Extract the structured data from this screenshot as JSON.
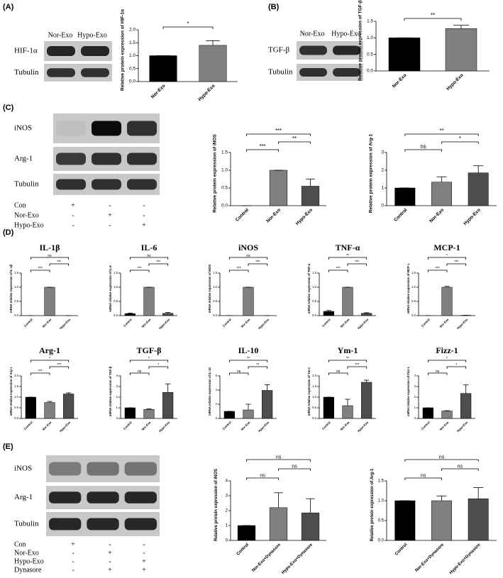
{
  "panels": [
    "(A)",
    "(B)",
    "(C)",
    "(D)",
    "(E)"
  ],
  "blots": {
    "A": {
      "lanes": [
        "Nor-Exo",
        "Hypo-Exo"
      ],
      "rows": [
        "HIF-1α",
        "Tubulin"
      ]
    },
    "B": {
      "lanes": [
        "Nor-Exo",
        "Hypo-Exo"
      ],
      "rows": [
        "TGF-β",
        "Tubulin"
      ]
    },
    "C": {
      "rows": [
        "iNOS",
        "Arg-1",
        "Tubulin"
      ],
      "conditions": [
        {
          "name": "Con",
          "signs": [
            "+",
            "-",
            "-"
          ]
        },
        {
          "name": "Nor-Exo",
          "signs": [
            "-",
            "+",
            "-"
          ]
        },
        {
          "name": "Hypo-Exo",
          "signs": [
            "-",
            "-",
            "+"
          ]
        }
      ]
    },
    "E": {
      "rows": [
        "iNOS",
        "Arg-1",
        "Tubulin"
      ],
      "conditions": [
        {
          "name": "Con",
          "signs": [
            "+",
            "-",
            "-"
          ]
        },
        {
          "name": "Nor-Exo",
          "signs": [
            "-",
            "+",
            "-"
          ]
        },
        {
          "name": "Hypo-Exo",
          "signs": [
            "-",
            "-",
            "+"
          ]
        },
        {
          "name": "Dynasore",
          "signs": [
            "-",
            "+",
            "+"
          ]
        }
      ]
    }
  },
  "chart_data": [
    {
      "type": "bar",
      "ylabel": "Relative protein expression of HIF-1α",
      "categories": [
        "Nor-Exo",
        "Hypo-Exo"
      ],
      "values": [
        1.0,
        1.4
      ],
      "errors": [
        0,
        0.18
      ],
      "colors": [
        "#000000",
        "#808080"
      ],
      "ylim": [
        0,
        2
      ],
      "yticks": [
        {
          "value": 0,
          "label": "0.0"
        },
        0.5,
        {
          "value": 1,
          "label": "1.0"
        },
        1.5,
        {
          "value": 2,
          "label": "2.0"
        }
      ],
      "annotations": [
        {
          "between": [
            "Nor-Exo",
            "Hypo-Exo"
          ],
          "label": "*"
        }
      ]
    },
    {
      "type": "bar",
      "ylabel": "Relative protein expression of TGF-β",
      "categories": [
        "Nor-Exo",
        "Hypo-Exo"
      ],
      "values": [
        1.0,
        1.28
      ],
      "errors": [
        0,
        0.1
      ],
      "colors": [
        "#000000",
        "#808080"
      ],
      "ylim": [
        0,
        1.5
      ],
      "yticks": [
        {
          "value": 0,
          "label": "0.0"
        },
        0.5,
        {
          "value": 1,
          "label": "1.0"
        },
        1.5
      ],
      "annotations": [
        {
          "between": [
            "Nor-Exo",
            "Hypo-Exo"
          ],
          "label": "**"
        }
      ]
    },
    {
      "type": "bar",
      "ylabel": "Relative protein expression of iNOS",
      "categories": [
        "Control",
        "Nor-Exo",
        "Hypo-Exo"
      ],
      "values": [
        0,
        1.0,
        0.55
      ],
      "errors": [
        0,
        0,
        0.2
      ],
      "colors": [
        "#000000",
        "#808080",
        "#4d4d4d"
      ],
      "ylim": [
        0,
        1.5
      ],
      "yticks": [
        {
          "value": 0,
          "label": "0.0"
        },
        0.5,
        {
          "value": 1,
          "label": "1.0"
        },
        1.5
      ],
      "annotations": [
        {
          "between": [
            "Control",
            "Nor-Exo"
          ],
          "label": "***"
        },
        {
          "between": [
            "Nor-Exo",
            "Hypo-Exo"
          ],
          "label": "**"
        },
        {
          "between": [
            "Control",
            "Hypo-Exo"
          ],
          "label": "***"
        }
      ]
    },
    {
      "type": "bar",
      "ylabel": "Relative protein expression of Arg-1",
      "categories": [
        "Control",
        "Nor-Exo",
        "Hypo-Exo"
      ],
      "values": [
        1.0,
        1.33,
        1.85
      ],
      "errors": [
        0,
        0.3,
        0.4
      ],
      "colors": [
        "#000000",
        "#808080",
        "#4d4d4d"
      ],
      "ylim": [
        0,
        3
      ],
      "yticks": [
        0,
        1,
        2,
        3
      ],
      "annotations": [
        {
          "between": [
            "Control",
            "Nor-Exo"
          ],
          "label": "ns"
        },
        {
          "between": [
            "Nor-Exo",
            "Hypo-Exo"
          ],
          "label": "*"
        },
        {
          "between": [
            "Control",
            "Hypo-Exo"
          ],
          "label": "**"
        }
      ]
    },
    {
      "type": "bar",
      "title": "IL-1β",
      "ylabel": "mRNA relative expression of IL-1β",
      "categories": [
        "Control",
        "Nor-Exo",
        "Hypo-Exo"
      ],
      "values": [
        0,
        1.0,
        0
      ],
      "errors": [
        0,
        0,
        0
      ],
      "colors": [
        "#000000",
        "#808080",
        "#4d4d4d"
      ],
      "ylim": [
        0,
        1.5
      ],
      "yticks": [
        {
          "value": 0,
          "label": "0.0"
        },
        0.5,
        {
          "value": 1,
          "label": "1.0"
        },
        1.5
      ],
      "annotations": [
        {
          "between": [
            "Control",
            "Nor-Exo"
          ],
          "label": "***"
        },
        {
          "between": [
            "Nor-Exo",
            "Hypo-Exo"
          ],
          "label": "***"
        },
        {
          "between": [
            "Control",
            "Hypo-Exo"
          ],
          "label": "ns"
        }
      ]
    },
    {
      "type": "bar",
      "title": "IL-6",
      "ylabel": "mRNA relative expression of IL-6",
      "categories": [
        "Control",
        "Nor-Exo",
        "Hypo-Exo"
      ],
      "values": [
        0.07,
        1.0,
        0.08
      ],
      "errors": [
        0.02,
        0,
        0.03
      ],
      "colors": [
        "#000000",
        "#808080",
        "#4d4d4d"
      ],
      "ylim": [
        0,
        1.5
      ],
      "yticks": [
        {
          "value": 0,
          "label": "0.0"
        },
        0.5,
        {
          "value": 1,
          "label": "1.0"
        },
        1.5
      ],
      "annotations": [
        {
          "between": [
            "Control",
            "Nor-Exo"
          ],
          "label": "***"
        },
        {
          "between": [
            "Nor-Exo",
            "Hypo-Exo"
          ],
          "label": "***"
        },
        {
          "between": [
            "Control",
            "Hypo-Exo"
          ],
          "label": "ns"
        }
      ]
    },
    {
      "type": "bar",
      "title": "iNOS",
      "ylabel": "mRNA relative expression of iNOS",
      "categories": [
        "Control",
        "Nor-Exo",
        "Hypo-Exo"
      ],
      "values": [
        0,
        1.0,
        0
      ],
      "errors": [
        0,
        0,
        0
      ],
      "colors": [
        "#000000",
        "#808080",
        "#4d4d4d"
      ],
      "ylim": [
        0,
        1.5
      ],
      "yticks": [
        {
          "value": 0,
          "label": "0.0"
        },
        0.5,
        {
          "value": 1,
          "label": "1.0"
        },
        1.5
      ],
      "annotations": [
        {
          "between": [
            "Control",
            "Nor-Exo"
          ],
          "label": "***"
        },
        {
          "between": [
            "Nor-Exo",
            "Hypo-Exo"
          ],
          "label": "***"
        },
        {
          "between": [
            "Control",
            "Hypo-Exo"
          ],
          "label": "ns"
        }
      ]
    },
    {
      "type": "bar",
      "title": "TNF-α",
      "ylabel": "mRNA relative expression of TNF-α",
      "categories": [
        "Control",
        "Nor-Exo",
        "Hypo-Exo"
      ],
      "values": [
        0.15,
        1.0,
        0.08
      ],
      "errors": [
        0.03,
        0,
        0.02
      ],
      "colors": [
        "#000000",
        "#808080",
        "#4d4d4d"
      ],
      "ylim": [
        0,
        1.5
      ],
      "yticks": [
        {
          "value": 0,
          "label": "0.0"
        },
        0.5,
        {
          "value": 1,
          "label": "1.0"
        },
        1.5
      ],
      "annotations": [
        {
          "between": [
            "Control",
            "Nor-Exo"
          ],
          "label": "***"
        },
        {
          "between": [
            "Nor-Exo",
            "Hypo-Exo"
          ],
          "label": "***"
        },
        {
          "between": [
            "Control",
            "Hypo-Exo"
          ],
          "label": "**"
        }
      ]
    },
    {
      "type": "bar",
      "title": "MCP-1",
      "ylabel": "mRNA relative expression of MCP-1",
      "categories": [
        "Control",
        "Nor-Exo",
        "Hypo-Exo"
      ],
      "values": [
        0,
        1.0,
        0.01
      ],
      "errors": [
        0,
        0.03,
        0
      ],
      "colors": [
        "#000000",
        "#808080",
        "#4d4d4d"
      ],
      "ylim": [
        0,
        1.5
      ],
      "yticks": [
        {
          "value": 0,
          "label": "0.0"
        },
        0.5,
        {
          "value": 1,
          "label": "1.0"
        },
        1.5
      ],
      "annotations": [
        {
          "between": [
            "Control",
            "Nor-Exo"
          ],
          "label": "***"
        },
        {
          "between": [
            "Nor-Exo",
            "Hypo-Exo"
          ],
          "label": "***"
        },
        {
          "between": [
            "Control",
            "Hypo-Exo"
          ],
          "label": "*"
        }
      ]
    },
    {
      "type": "bar",
      "title": "Arg-1",
      "ylabel": "mRNA relative expression of Arg-1",
      "categories": [
        "Control",
        "Nor-Exo",
        "Hypo-Exo"
      ],
      "values": [
        1.0,
        0.75,
        1.15
      ],
      "errors": [
        0,
        0.05,
        0.05
      ],
      "colors": [
        "#000000",
        "#808080",
        "#4d4d4d"
      ],
      "ylim": [
        0,
        2
      ],
      "yticks": [
        {
          "value": 0,
          "label": "0.0"
        },
        0.5,
        {
          "value": 1,
          "label": "1.0"
        },
        1.5,
        {
          "value": 2,
          "label": "2.0"
        }
      ],
      "annotations": [
        {
          "between": [
            "Control",
            "Nor-Exo"
          ],
          "label": "***"
        },
        {
          "between": [
            "Nor-Exo",
            "Hypo-Exo"
          ],
          "label": "***"
        },
        {
          "between": [
            "Control",
            "Hypo-Exo"
          ],
          "label": "*"
        }
      ]
    },
    {
      "type": "bar",
      "title": "TGF-β",
      "ylabel": "mRNA relative expression of TGF-β",
      "categories": [
        "Control",
        "Nor-Exo",
        "Hypo-Exo"
      ],
      "values": [
        1.0,
        0.85,
        2.45
      ],
      "errors": [
        0,
        0.05,
        0.8
      ],
      "colors": [
        "#000000",
        "#808080",
        "#4d4d4d"
      ],
      "ylim": [
        0,
        4
      ],
      "yticks": [
        0,
        1,
        2,
        3,
        4
      ],
      "annotations": [
        {
          "between": [
            "Control",
            "Nor-Exo"
          ],
          "label": "ns"
        },
        {
          "between": [
            "Nor-Exo",
            "Hypo-Exo"
          ],
          "label": "*"
        },
        {
          "between": [
            "Control",
            "Hypo-Exo"
          ],
          "label": "*"
        }
      ]
    },
    {
      "type": "bar",
      "title": "IL-10",
      "ylabel": "mRNA relative expression of IL-10",
      "categories": [
        "Control",
        "Nor-Exo",
        "Hypo-Exo"
      ],
      "values": [
        1.0,
        1.2,
        3.95
      ],
      "errors": [
        0,
        0.8,
        0.8
      ],
      "colors": [
        "#000000",
        "#808080",
        "#4d4d4d"
      ],
      "ylim": [
        0,
        6
      ],
      "yticks": [
        0,
        2,
        4,
        6
      ],
      "annotations": [
        {
          "between": [
            "Control",
            "Nor-Exo"
          ],
          "label": "ns"
        },
        {
          "between": [
            "Nor-Exo",
            "Hypo-Exo"
          ],
          "label": "**"
        },
        {
          "between": [
            "Control",
            "Hypo-Exo"
          ],
          "label": "**"
        }
      ]
    },
    {
      "type": "bar",
      "title": "Ym-1",
      "ylabel": "mRNA relative expression of Ym-1",
      "categories": [
        "Control",
        "Nor-Exo",
        "Hypo-Exo"
      ],
      "values": [
        1.0,
        0.6,
        1.7
      ],
      "errors": [
        0,
        0.3,
        0.1
      ],
      "colors": [
        "#000000",
        "#808080",
        "#4d4d4d"
      ],
      "ylim": [
        0,
        2
      ],
      "yticks": [
        {
          "value": 0,
          "label": "0.0"
        },
        0.5,
        {
          "value": 1,
          "label": "1.0"
        },
        1.5,
        {
          "value": 2,
          "label": "2.0"
        }
      ],
      "annotations": [
        {
          "between": [
            "Control",
            "Nor-Exo"
          ],
          "label": "ns"
        },
        {
          "between": [
            "Nor-Exo",
            "Hypo-Exo"
          ],
          "label": "***"
        },
        {
          "between": [
            "Control",
            "Hypo-Exo"
          ],
          "label": "**"
        }
      ]
    },
    {
      "type": "bar",
      "title": "Fizz-1",
      "ylabel": "mRNA relative expression of Fizz-1",
      "categories": [
        "Control",
        "Nor-Exo",
        "Hypo-Exo"
      ],
      "values": [
        1.0,
        0.7,
        2.35
      ],
      "errors": [
        0,
        0.03,
        0.8
      ],
      "colors": [
        "#000000",
        "#808080",
        "#4d4d4d"
      ],
      "ylim": [
        0,
        4
      ],
      "yticks": [
        0,
        1,
        2,
        3,
        4
      ],
      "annotations": [
        {
          "between": [
            "Control",
            "Nor-Exo"
          ],
          "label": "ns"
        },
        {
          "between": [
            "Nor-Exo",
            "Hypo-Exo"
          ],
          "label": "*"
        },
        {
          "between": [
            "Control",
            "Hypo-Exo"
          ],
          "label": "*"
        }
      ]
    },
    {
      "type": "bar",
      "ylabel": "Relative protein expression of iNOS",
      "categories": [
        "Control",
        "Nor-Exo+Dynasore",
        "Hypo-Exo+Dynasore"
      ],
      "values": [
        1.0,
        2.2,
        1.85
      ],
      "errors": [
        0,
        1.0,
        0.95
      ],
      "colors": [
        "#000000",
        "#808080",
        "#4d4d4d"
      ],
      "ylim": [
        0,
        4
      ],
      "yticks": [
        0,
        1,
        2,
        3,
        4
      ],
      "annotations": [
        {
          "between": [
            "Control",
            "Nor-Exo+Dynasore"
          ],
          "label": "ns"
        },
        {
          "between": [
            "Nor-Exo+Dynasore",
            "Hypo-Exo+Dynasore"
          ],
          "label": "ns"
        },
        {
          "between": [
            "Control",
            "Hypo-Exo+Dynasore"
          ],
          "label": "ns"
        }
      ]
    },
    {
      "type": "bar",
      "ylabel": "Relative protein expression of Arg-1",
      "categories": [
        "Control",
        "Nor-Exo+Dynasore",
        "Hypo-Exo+Dynasore"
      ],
      "values": [
        1.0,
        1.0,
        1.05
      ],
      "errors": [
        0,
        0.12,
        0.28
      ],
      "colors": [
        "#000000",
        "#808080",
        "#4d4d4d"
      ],
      "ylim": [
        0,
        1.5
      ],
      "yticks": [
        {
          "value": 0,
          "label": "0.0"
        },
        0.5,
        {
          "value": 1,
          "label": "1.0"
        },
        1.5
      ],
      "annotations": [
        {
          "between": [
            "Control",
            "Nor-Exo+Dynasore"
          ],
          "label": "ns"
        },
        {
          "between": [
            "Nor-Exo+Dynasore",
            "Hypo-Exo+Dynasore"
          ],
          "label": "ns"
        },
        {
          "between": [
            "Control",
            "Hypo-Exo+Dynasore"
          ],
          "label": "ns"
        }
      ]
    }
  ]
}
